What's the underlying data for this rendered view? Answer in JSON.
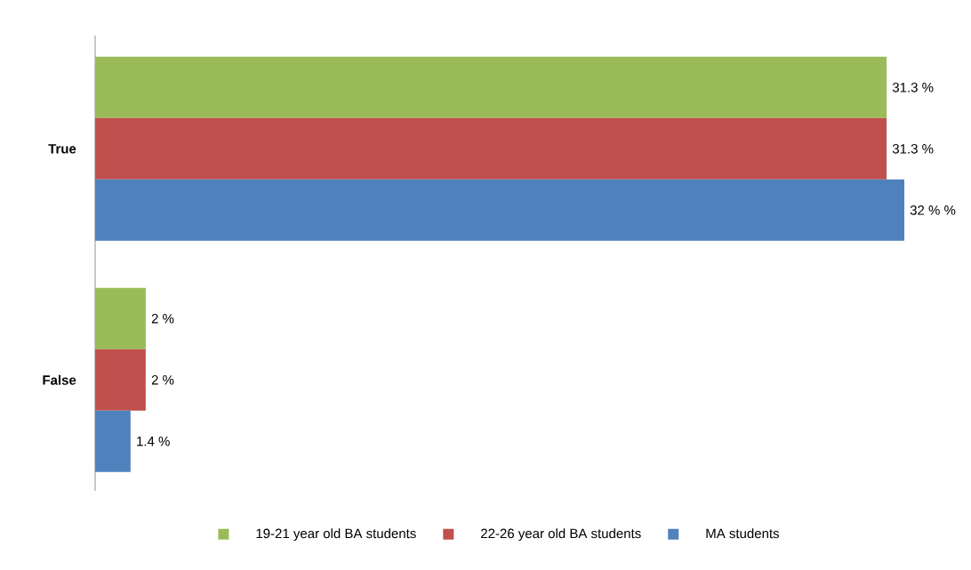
{
  "chart_data": {
    "type": "bar",
    "orientation": "horizontal",
    "categories": [
      "True",
      "False"
    ],
    "legend": "bottom",
    "series": [
      {
        "name": "19-21 year old BA students",
        "color": "#9bbb59",
        "values": [
          31.3,
          2
        ],
        "value_labels": [
          "31.3 %",
          "2 %"
        ]
      },
      {
        "name": "22-26 year old BA students",
        "color": "#c0504d",
        "values": [
          31.3,
          2
        ],
        "value_labels": [
          "31.3 %",
          "2 %"
        ]
      },
      {
        "name": "MA students",
        "color": "#4f81bd",
        "values": [
          32,
          1.4
        ],
        "value_labels": [
          "32 % %",
          "1.4 %"
        ]
      }
    ]
  }
}
